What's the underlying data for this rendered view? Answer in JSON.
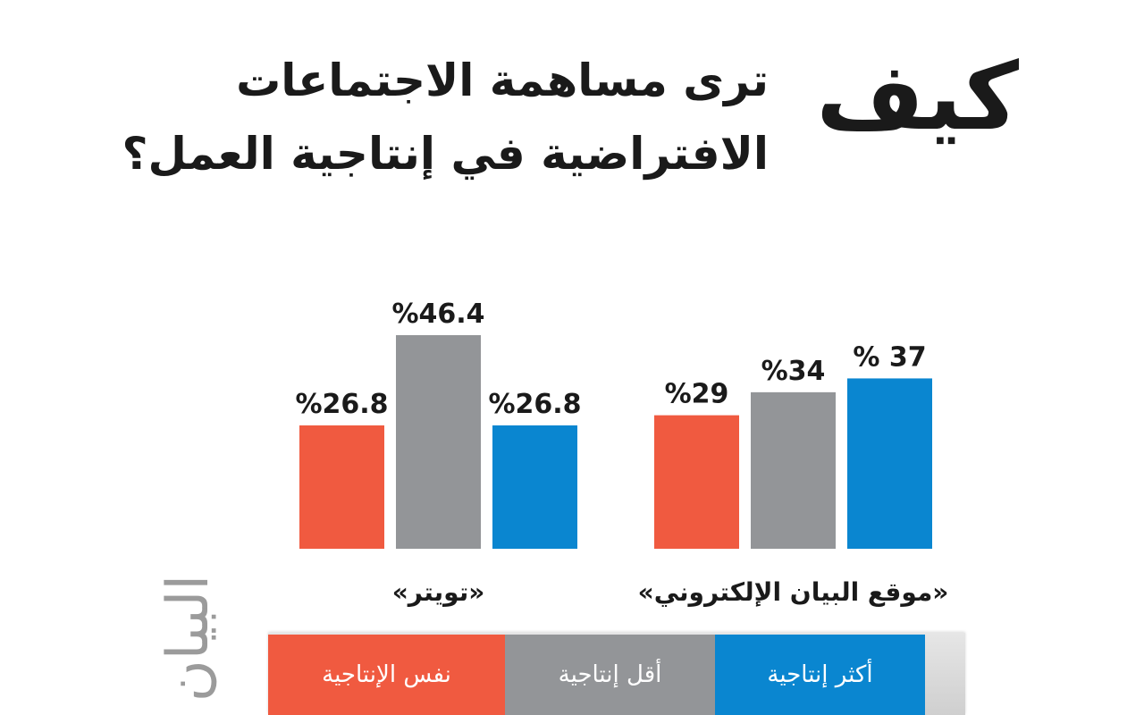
{
  "title": {
    "big": "كيف",
    "line1": "ترى مساهمة الاجتماعات",
    "line2": "الافتراضية في إنتاجية العمل؟"
  },
  "logo_text": "البيان",
  "chart_data": {
    "type": "bar",
    "categories": [
      "«تويتر»",
      "«موقع البيان الإلكتروني»"
    ],
    "series": [
      {
        "name": "نفس الإنتاجية",
        "color": "#f05a40",
        "values": [
          26.8,
          29
        ],
        "labels": [
          "%26.8",
          "%29"
        ]
      },
      {
        "name": "أقل إنتاجية",
        "color": "#939598",
        "values": [
          46.4,
          34
        ],
        "labels": [
          "%46.4",
          "%34"
        ]
      },
      {
        "name": "أكثر إنتاجية",
        "color": "#0a86d0",
        "values": [
          26.8,
          37
        ],
        "labels": [
          "%26.8",
          "% 37"
        ]
      }
    ],
    "ylim": [
      0,
      46.4
    ],
    "xlabel": "",
    "ylabel": "",
    "legend_position": "bottom"
  }
}
